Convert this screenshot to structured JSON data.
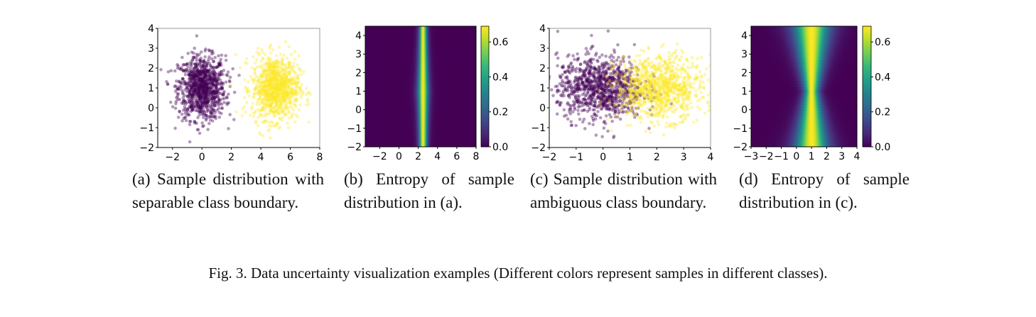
{
  "figure_caption": "Fig. 3.  Data uncertainty visualization examples (Different colors represent samples in different classes).",
  "subcaptions": [
    "(a)  Sample distribution with separable class boundary.",
    "(b) Entropy of sample distribution in (a).",
    "(c) Sample distribution with ambiguous class boundary.",
    "(d) Entropy of sample distribution in (c)."
  ],
  "colors": {
    "class_0": "#440154",
    "class_1": "#fde725"
  },
  "chart_data": [
    {
      "type": "scatter",
      "xlim": [
        -3,
        8
      ],
      "ylim": [
        -2,
        4
      ],
      "xticks": [
        -2,
        0,
        2,
        4,
        6,
        8
      ],
      "yticks": [
        -2,
        -1,
        0,
        1,
        2,
        3,
        4
      ],
      "classes": [
        {
          "color": "#440154",
          "mean": [
            0,
            1
          ],
          "std": [
            0.8,
            0.8
          ],
          "count": 1000
        },
        {
          "color": "#fde725",
          "mean": [
            5,
            1
          ],
          "std": [
            0.8,
            0.8
          ],
          "count": 1000
        }
      ],
      "grid": false
    },
    {
      "type": "heatmap",
      "xlim": [
        -3.5,
        8
      ],
      "ylim": [
        -2,
        4.5
      ],
      "xticks": [
        -2,
        0,
        2,
        4,
        6,
        8
      ],
      "yticks": [
        -2,
        -1,
        0,
        1,
        2,
        3,
        4
      ],
      "boundary_x": 2.5,
      "boundary_y": 1,
      "colorbar": {
        "range": [
          0,
          0.69
        ],
        "ticks": [
          "0.0",
          "0.2",
          "0.4",
          "0.6"
        ],
        "colormap": "viridis"
      },
      "sharpness": 5,
      "sharpness_growth": 0.6
    },
    {
      "type": "scatter",
      "xlim": [
        -2,
        4
      ],
      "ylim": [
        -2,
        4
      ],
      "xticks": [
        -2,
        -1,
        0,
        1,
        2,
        3,
        4
      ],
      "yticks": [
        -2,
        -1,
        0,
        1,
        2,
        3,
        4
      ],
      "classes": [
        {
          "color": "#440154",
          "mean": [
            -0.1,
            1
          ],
          "std": [
            0.8,
            0.8
          ],
          "count": 1000
        },
        {
          "color": "#fde725",
          "mean": [
            2.1,
            1
          ],
          "std": [
            0.8,
            0.8
          ],
          "count": 1000
        }
      ],
      "grid": false
    },
    {
      "type": "heatmap",
      "xlim": [
        -3,
        4
      ],
      "ylim": [
        -2,
        4.5
      ],
      "xticks": [
        -3,
        -2,
        -1,
        0,
        1,
        2,
        3,
        4
      ],
      "yticks": [
        -2,
        -1,
        0,
        1,
        2,
        3,
        4
      ],
      "boundary_x": 1,
      "boundary_y": 1,
      "colorbar": {
        "range": [
          0,
          0.69
        ],
        "ticks": [
          "0.0",
          "0.2",
          "0.4",
          "0.6"
        ],
        "colormap": "viridis"
      },
      "sharpness": 6,
      "sharpness_growth": -1.2
    }
  ]
}
